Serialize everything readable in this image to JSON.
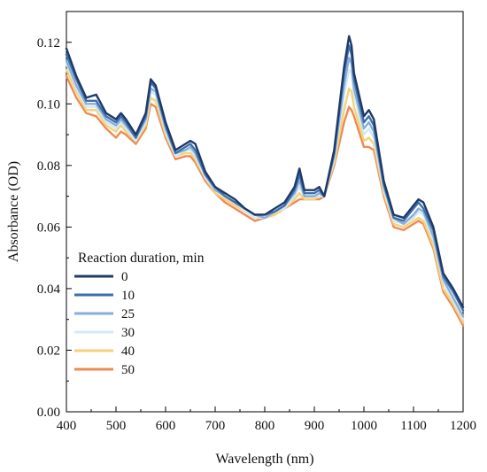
{
  "chart_data": {
    "type": "line",
    "xlabel": "Wavelength (nm)",
    "ylabel": "Absorbance (OD)",
    "xlim": [
      400,
      1200
    ],
    "ylim": [
      0.0,
      0.13
    ],
    "x_ticks": [
      400,
      500,
      600,
      700,
      800,
      900,
      1000,
      1100,
      1200
    ],
    "x_tick_labels": [
      "400",
      "500",
      "600",
      "700",
      "800",
      "900",
      "1000",
      "1100",
      "1200"
    ],
    "y_ticks": [
      0.0,
      0.02,
      0.04,
      0.06,
      0.08,
      0.1,
      0.12
    ],
    "y_tick_labels": [
      "0.00",
      "0.02",
      "0.04",
      "0.06",
      "0.08",
      "0.10",
      "0.12"
    ],
    "grid": false,
    "legend": {
      "title": "Reaction duration, min",
      "placement": "bottom-left"
    },
    "x": [
      400,
      420,
      440,
      460,
      480,
      500,
      510,
      520,
      540,
      560,
      570,
      580,
      600,
      620,
      640,
      650,
      660,
      680,
      700,
      720,
      740,
      760,
      780,
      800,
      820,
      840,
      860,
      870,
      880,
      900,
      910,
      920,
      940,
      960,
      970,
      975,
      980,
      1000,
      1010,
      1020,
      1040,
      1060,
      1080,
      1100,
      1110,
      1120,
      1140,
      1160,
      1180,
      1200
    ],
    "series": [
      {
        "name": "0",
        "color": "#1f3a68",
        "values": [
          0.118,
          0.109,
          0.102,
          0.103,
          0.097,
          0.095,
          0.097,
          0.095,
          0.09,
          0.097,
          0.108,
          0.106,
          0.094,
          0.085,
          0.087,
          0.088,
          0.087,
          0.078,
          0.073,
          0.071,
          0.069,
          0.066,
          0.064,
          0.064,
          0.066,
          0.068,
          0.073,
          0.079,
          0.072,
          0.072,
          0.073,
          0.07,
          0.085,
          0.112,
          0.122,
          0.119,
          0.11,
          0.096,
          0.098,
          0.095,
          0.075,
          0.064,
          0.063,
          0.067,
          0.069,
          0.068,
          0.06,
          0.045,
          0.04,
          0.034
        ]
      },
      {
        "name": "10",
        "color": "#3e6fab",
        "values": [
          0.116,
          0.108,
          0.101,
          0.101,
          0.096,
          0.094,
          0.096,
          0.094,
          0.089,
          0.096,
          0.107,
          0.105,
          0.093,
          0.084,
          0.086,
          0.087,
          0.085,
          0.077,
          0.073,
          0.07,
          0.068,
          0.066,
          0.064,
          0.064,
          0.065,
          0.067,
          0.072,
          0.077,
          0.071,
          0.071,
          0.072,
          0.07,
          0.084,
          0.11,
          0.119,
          0.116,
          0.108,
          0.094,
          0.096,
          0.093,
          0.074,
          0.063,
          0.062,
          0.066,
          0.068,
          0.066,
          0.059,
          0.044,
          0.039,
          0.033
        ]
      },
      {
        "name": "25",
        "color": "#87aed8",
        "values": [
          0.114,
          0.106,
          0.1,
          0.1,
          0.095,
          0.093,
          0.095,
          0.093,
          0.089,
          0.095,
          0.105,
          0.104,
          0.092,
          0.084,
          0.085,
          0.086,
          0.084,
          0.077,
          0.072,
          0.07,
          0.068,
          0.066,
          0.064,
          0.063,
          0.065,
          0.067,
          0.071,
          0.075,
          0.07,
          0.07,
          0.071,
          0.07,
          0.083,
          0.106,
          0.115,
          0.113,
          0.105,
          0.092,
          0.094,
          0.091,
          0.073,
          0.063,
          0.061,
          0.064,
          0.066,
          0.065,
          0.057,
          0.043,
          0.037,
          0.031
        ]
      },
      {
        "name": "30",
        "color": "#d4e9f2",
        "values": [
          0.113,
          0.105,
          0.099,
          0.099,
          0.094,
          0.092,
          0.094,
          0.092,
          0.088,
          0.094,
          0.104,
          0.103,
          0.091,
          0.083,
          0.085,
          0.085,
          0.083,
          0.076,
          0.072,
          0.07,
          0.068,
          0.065,
          0.063,
          0.063,
          0.065,
          0.066,
          0.07,
          0.073,
          0.07,
          0.07,
          0.07,
          0.07,
          0.082,
          0.103,
          0.111,
          0.11,
          0.103,
          0.09,
          0.092,
          0.089,
          0.072,
          0.062,
          0.061,
          0.063,
          0.065,
          0.064,
          0.056,
          0.042,
          0.036,
          0.03
        ]
      },
      {
        "name": "40",
        "color": "#f5d27a",
        "values": [
          0.111,
          0.104,
          0.098,
          0.098,
          0.093,
          0.091,
          0.093,
          0.091,
          0.088,
          0.093,
          0.102,
          0.101,
          0.09,
          0.083,
          0.084,
          0.084,
          0.082,
          0.076,
          0.071,
          0.069,
          0.067,
          0.065,
          0.063,
          0.063,
          0.064,
          0.066,
          0.069,
          0.071,
          0.069,
          0.069,
          0.07,
          0.07,
          0.081,
          0.098,
          0.105,
          0.104,
          0.099,
          0.088,
          0.089,
          0.087,
          0.071,
          0.061,
          0.06,
          0.062,
          0.063,
          0.062,
          0.054,
          0.04,
          0.035,
          0.029
        ]
      },
      {
        "name": "50",
        "color": "#ef8a52",
        "values": [
          0.109,
          0.102,
          0.097,
          0.096,
          0.092,
          0.089,
          0.091,
          0.09,
          0.087,
          0.092,
          0.1,
          0.099,
          0.089,
          0.082,
          0.083,
          0.083,
          0.081,
          0.075,
          0.071,
          0.068,
          0.066,
          0.064,
          0.062,
          0.063,
          0.064,
          0.066,
          0.068,
          0.069,
          0.069,
          0.069,
          0.069,
          0.07,
          0.08,
          0.094,
          0.099,
          0.098,
          0.096,
          0.086,
          0.086,
          0.085,
          0.07,
          0.06,
          0.059,
          0.061,
          0.062,
          0.061,
          0.053,
          0.039,
          0.034,
          0.028
        ]
      }
    ]
  }
}
